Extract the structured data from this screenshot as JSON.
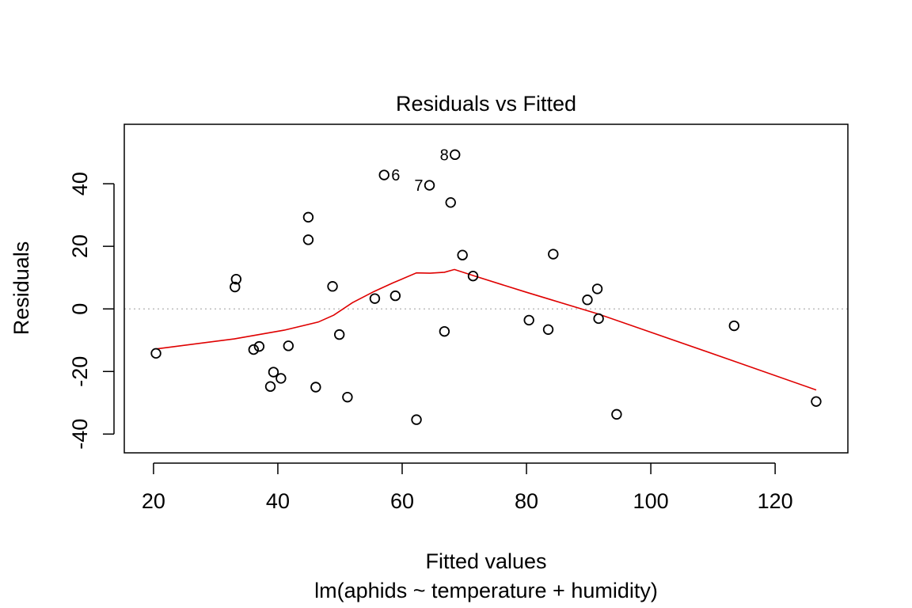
{
  "chart_data": {
    "type": "scatter",
    "title": "Residuals vs Fitted",
    "xlabel": "Fitted values",
    "subtitle": "lm(aphids ~ temperature + humidity)",
    "ylabel": "Residuals",
    "xlim": [
      15.3,
      131.7
    ],
    "ylim": [
      -46,
      59
    ],
    "xticks": [
      20,
      40,
      60,
      80,
      100,
      120
    ],
    "yticks": [
      -40,
      -20,
      0,
      20,
      40
    ],
    "reference_line": {
      "y": 0,
      "style": "dotted",
      "color": "#bebebe"
    },
    "points": [
      {
        "x": 20.4,
        "y": -14.2
      },
      {
        "x": 33.1,
        "y": 7.0
      },
      {
        "x": 33.3,
        "y": 9.5
      },
      {
        "x": 36.1,
        "y": -13.0
      },
      {
        "x": 37.0,
        "y": -12.0
      },
      {
        "x": 38.8,
        "y": -24.8
      },
      {
        "x": 39.3,
        "y": -20.2
      },
      {
        "x": 40.5,
        "y": -22.2
      },
      {
        "x": 41.7,
        "y": -11.8
      },
      {
        "x": 44.9,
        "y": 29.3
      },
      {
        "x": 44.9,
        "y": 22.1
      },
      {
        "x": 46.1,
        "y": -25.0
      },
      {
        "x": 48.8,
        "y": 7.2
      },
      {
        "x": 49.9,
        "y": -8.2
      },
      {
        "x": 51.2,
        "y": -28.2
      },
      {
        "x": 55.6,
        "y": 3.3
      },
      {
        "x": 57.1,
        "y": 42.8,
        "label": "6"
      },
      {
        "x": 58.9,
        "y": 4.2
      },
      {
        "x": 62.3,
        "y": -35.4
      },
      {
        "x": 64.4,
        "y": 39.5,
        "label": "7"
      },
      {
        "x": 66.8,
        "y": -7.2
      },
      {
        "x": 67.8,
        "y": 34.0
      },
      {
        "x": 68.5,
        "y": 49.3,
        "label": "8"
      },
      {
        "x": 69.7,
        "y": 17.2
      },
      {
        "x": 71.4,
        "y": 10.5
      },
      {
        "x": 80.4,
        "y": -3.6
      },
      {
        "x": 83.5,
        "y": -6.6
      },
      {
        "x": 84.3,
        "y": 17.5
      },
      {
        "x": 89.8,
        "y": 2.9
      },
      {
        "x": 91.4,
        "y": 6.4
      },
      {
        "x": 91.6,
        "y": -3.1
      },
      {
        "x": 94.5,
        "y": -33.7
      },
      {
        "x": 113.4,
        "y": -5.4
      },
      {
        "x": 126.6,
        "y": -29.6
      }
    ],
    "smoother": {
      "color": "#df0000",
      "x": [
        20.4,
        33.0,
        41.0,
        46.5,
        49.0,
        52.0,
        55.5,
        58.5,
        62.3,
        64.5,
        66.8,
        68.4,
        71.5,
        80.0,
        84.0,
        91.5,
        113.4,
        126.6
      ],
      "y": [
        -12.8,
        -9.6,
        -6.8,
        -4.2,
        -2.0,
        2.0,
        5.6,
        8.3,
        11.5,
        11.4,
        11.7,
        12.6,
        10.6,
        5.3,
        2.9,
        -1.6,
        -16.7,
        -25.9
      ]
    }
  }
}
